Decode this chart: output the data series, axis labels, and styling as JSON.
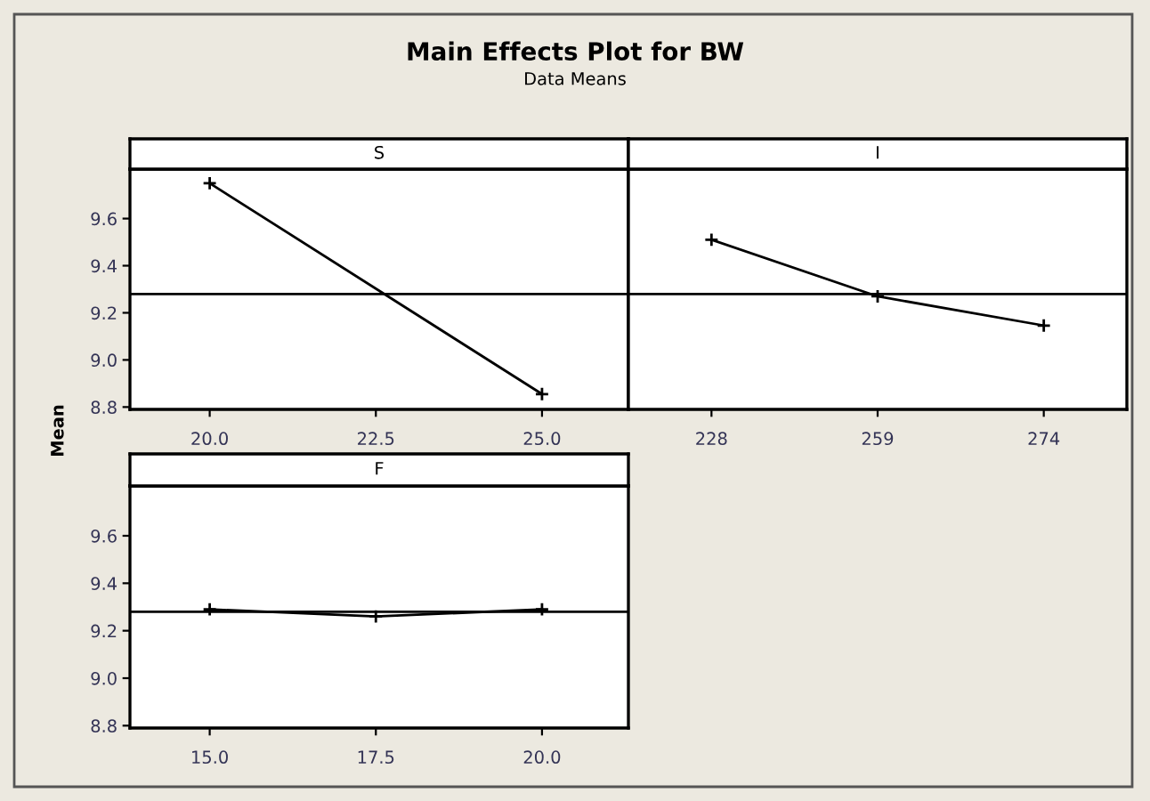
{
  "chart_data": [
    {
      "type": "line",
      "title": "Main Effects Plot for BW",
      "subtitle": "Data Means",
      "xlabel": "S",
      "ylabel": "Mean",
      "x": [
        20.0,
        25.0
      ],
      "xlim": [
        18.8,
        26.3
      ],
      "xticks": [
        {
          "value": 20,
          "label": "20.0"
        },
        22.5,
        {
          "value": 25,
          "label": "25.0"
        }
      ],
      "ylim": [
        8.79,
        9.81
      ],
      "yticks": [
        8.8,
        {
          "value": 9,
          "label": "9.0"
        },
        9.2,
        9.4,
        9.6
      ],
      "series": [
        {
          "color": "#000000",
          "values": [
            9.75,
            8.855
          ]
        }
      ],
      "marker": "cross",
      "ref_lines": [
        {
          "axis": "y",
          "value": 9.28,
          "color": "#000000"
        }
      ]
    },
    {
      "type": "line",
      "xlabel": "I",
      "categories": [
        "228",
        "259",
        "274"
      ],
      "ylim": [
        8.79,
        9.81
      ],
      "yticks": [
        8.8,
        9,
        9.2,
        9.4,
        9.6
      ],
      "tick_labels": "x",
      "series": [
        {
          "color": "#000000",
          "values": [
            9.51,
            9.27,
            9.146
          ]
        }
      ],
      "marker": "cross",
      "ref_lines": [
        {
          "axis": "y",
          "value": 9.28,
          "color": "#000000"
        }
      ]
    },
    {
      "type": "line",
      "xlabel": "F",
      "x": [
        15.0,
        17.5,
        20.0
      ],
      "xlim": [
        13.8,
        21.3
      ],
      "xticks": [
        {
          "value": 15,
          "label": "15.0"
        },
        17.5,
        {
          "value": 20,
          "label": "20.0"
        }
      ],
      "ylim": [
        8.79,
        9.81
      ],
      "yticks": [
        8.8,
        {
          "value": 9,
          "label": "9.0"
        },
        9.2,
        9.4,
        9.6
      ],
      "series": [
        {
          "color": "#000000",
          "values": [
            9.29,
            9.26,
            9.29
          ]
        }
      ],
      "marker": "cross",
      "ref_lines": [
        {
          "axis": "y",
          "value": 9.28,
          "color": "#000000"
        }
      ]
    }
  ]
}
